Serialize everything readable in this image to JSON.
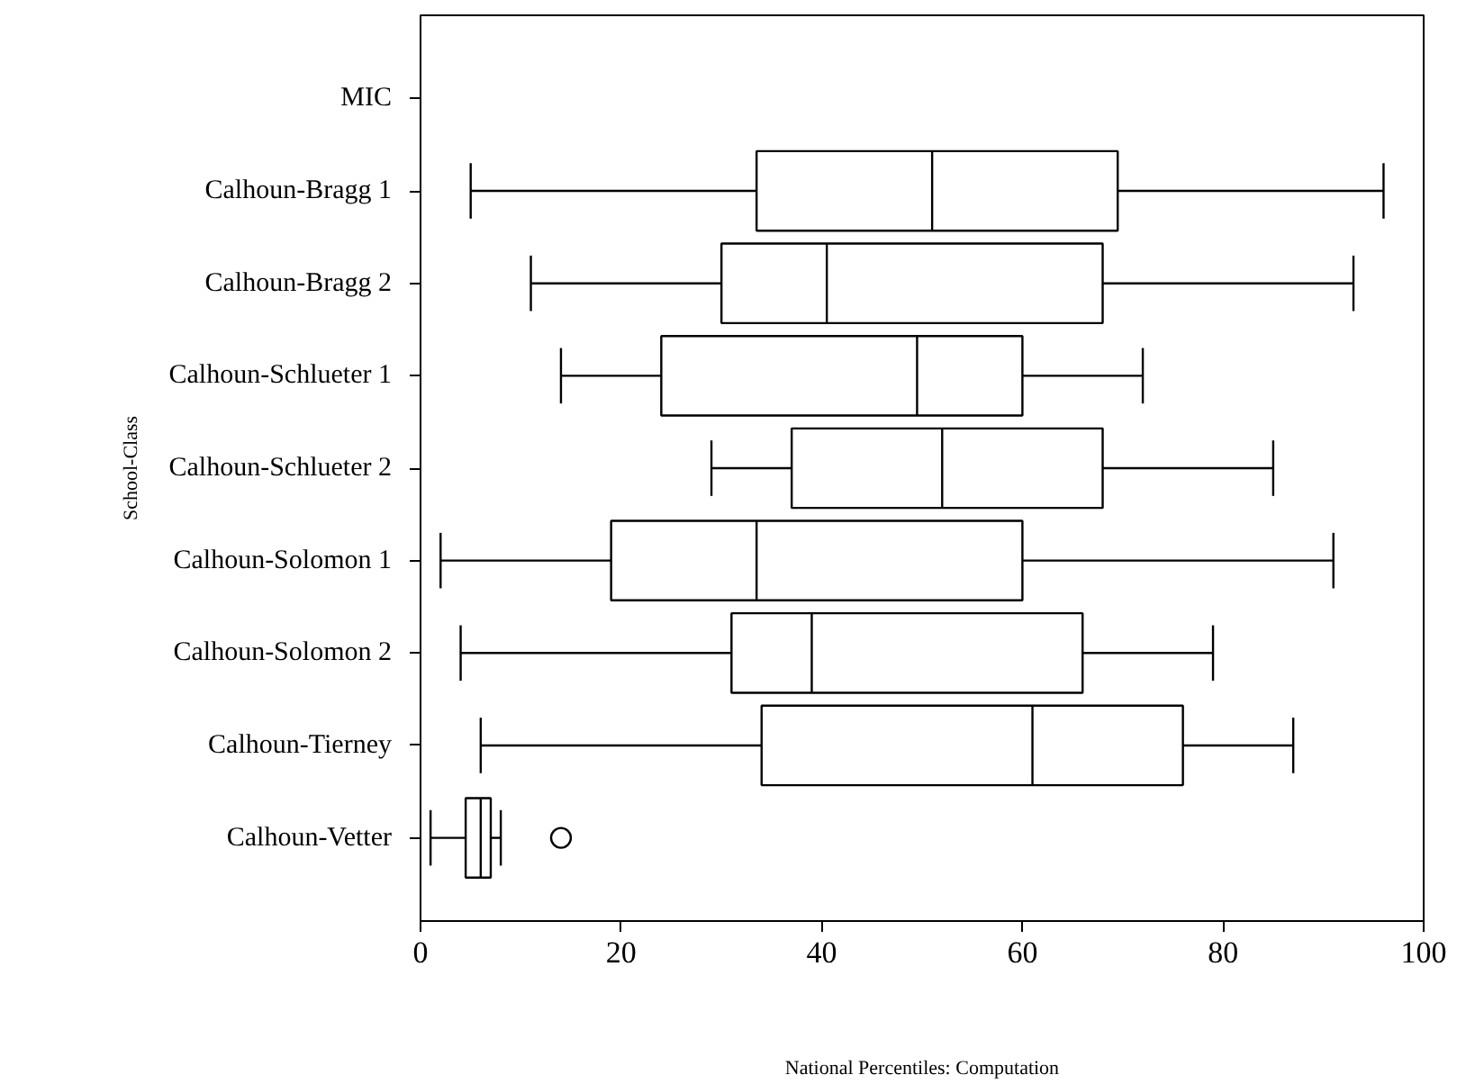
{
  "chart_data": {
    "type": "box",
    "orientation": "horizontal",
    "xlabel": "National Percentiles: Computation",
    "ylabel": "School-Class",
    "categories": [
      "MIC",
      "Calhoun-Bragg 1",
      "Calhoun-Bragg 2",
      "Calhoun-Schlueter 1",
      "Calhoun-Schlueter 2",
      "Calhoun-Solomon 1",
      "Calhoun-Solomon 2",
      "Calhoun-Tierney",
      "Calhoun-Vetter"
    ],
    "boxes": [
      null,
      {
        "low": 5,
        "q1": 33.5,
        "median": 51,
        "q3": 69.5,
        "high": 96
      },
      {
        "low": 11,
        "q1": 30,
        "median": 40.5,
        "q3": 68,
        "high": 93
      },
      {
        "low": 14,
        "q1": 24,
        "median": 49.5,
        "q3": 60,
        "high": 72
      },
      {
        "low": 29,
        "q1": 37,
        "median": 52,
        "q3": 68,
        "high": 85
      },
      {
        "low": 2,
        "q1": 19,
        "median": 33.5,
        "q3": 60,
        "high": 91
      },
      {
        "low": 4,
        "q1": 31,
        "median": 39,
        "q3": 66,
        "high": 79
      },
      {
        "low": 6,
        "q1": 34,
        "median": 61,
        "q3": 76,
        "high": 87
      },
      {
        "low": 1,
        "q1": 4.5,
        "median": 6,
        "q3": 7,
        "high": 8,
        "outliers": [
          14
        ]
      }
    ],
    "xlim": [
      0,
      100
    ],
    "xticks": [
      0,
      20,
      40,
      60,
      80,
      100
    ],
    "grid": false
  }
}
